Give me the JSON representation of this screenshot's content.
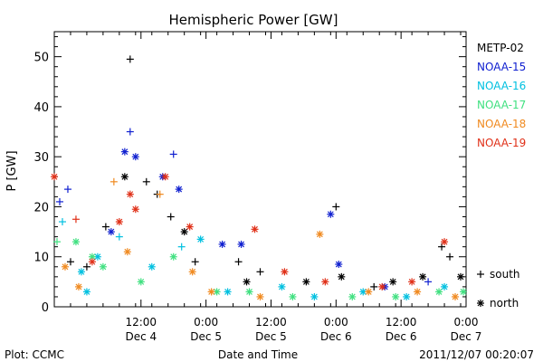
{
  "chart_data": {
    "type": "scatter",
    "title": "Hemispheric Power [GW]",
    "ylabel": "P [GW]",
    "xlabel": "Date and Time",
    "ylim": [
      0,
      55
    ],
    "yticks": [
      0,
      10,
      20,
      30,
      40,
      50
    ],
    "xlim": [
      "2011-12-03 20:00",
      "2011-12-07 00:00"
    ],
    "xticks": [
      {
        "x": "2011-12-04 12:00",
        "time": "12:00",
        "date": "Dec 4"
      },
      {
        "x": "2011-12-05 00:00",
        "time": "0:00",
        "date": "Dec 5"
      },
      {
        "x": "2011-12-05 12:00",
        "time": "12:00",
        "date": "Dec 5"
      },
      {
        "x": "2011-12-06 00:00",
        "time": "0:00",
        "date": "Dec 6"
      },
      {
        "x": "2011-12-06 12:00",
        "time": "12:00",
        "date": "Dec 6"
      },
      {
        "x": "2011-12-07 00:00",
        "time": "0:00",
        "date": "Dec 7"
      }
    ],
    "marker_legend": [
      {
        "symbol": "+",
        "label": "south"
      },
      {
        "symbol": "*",
        "label": "north"
      }
    ],
    "series": [
      {
        "name": "METP-02",
        "color": "#000000",
        "points": [
          [
            "2011-12-03 23:00",
            9,
            "+"
          ],
          [
            "2011-12-04 02:00",
            8,
            "+"
          ],
          [
            "2011-12-04 05:30",
            16,
            "+"
          ],
          [
            "2011-12-04 09:00",
            26,
            "*"
          ],
          [
            "2011-12-04 10:00",
            49.5,
            "+"
          ],
          [
            "2011-12-04 13:00",
            25,
            "+"
          ],
          [
            "2011-12-04 15:00",
            22.5,
            "+"
          ],
          [
            "2011-12-04 17:30",
            18,
            "+"
          ],
          [
            "2011-12-04 20:00",
            15,
            "*"
          ],
          [
            "2011-12-04 22:00",
            9,
            "+"
          ],
          [
            "2011-12-05 06:00",
            9,
            "+"
          ],
          [
            "2011-12-05 07:30",
            5,
            "*"
          ],
          [
            "2011-12-05 10:00",
            7,
            "+"
          ],
          [
            "2011-12-05 18:30",
            5,
            "*"
          ],
          [
            "2011-12-06 00:00",
            20,
            "+"
          ],
          [
            "2011-12-06 01:00",
            6,
            "*"
          ],
          [
            "2011-12-06 07:00",
            4,
            "+"
          ],
          [
            "2011-12-06 10:30",
            5,
            "*"
          ],
          [
            "2011-12-06 16:00",
            6,
            "*"
          ],
          [
            "2011-12-06 19:30",
            12,
            "+"
          ],
          [
            "2011-12-06 21:00",
            10,
            "+"
          ],
          [
            "2011-12-06 23:00",
            6,
            "*"
          ]
        ]
      },
      {
        "name": "NOAA-15",
        "color": "#1020d0",
        "points": [
          [
            "2011-12-03 21:00",
            21,
            "+"
          ],
          [
            "2011-12-03 22:30",
            23.5,
            "+"
          ],
          [
            "2011-12-04 06:30",
            15,
            "*"
          ],
          [
            "2011-12-04 09:00",
            31,
            "*"
          ],
          [
            "2011-12-04 10:00",
            35,
            "+"
          ],
          [
            "2011-12-04 11:00",
            30,
            "*"
          ],
          [
            "2011-12-04 16:00",
            26,
            "*"
          ],
          [
            "2011-12-04 18:00",
            30.5,
            "+"
          ],
          [
            "2011-12-04 19:00",
            23.5,
            "*"
          ],
          [
            "2011-12-05 03:00",
            12.5,
            "*"
          ],
          [
            "2011-12-05 06:30",
            12.5,
            "*"
          ],
          [
            "2011-12-05 23:00",
            18.5,
            "*"
          ],
          [
            "2011-12-06 00:30",
            8.5,
            "*"
          ],
          [
            "2011-12-06 09:00",
            4,
            "*"
          ],
          [
            "2011-12-06 17:00",
            5,
            "+"
          ]
        ]
      },
      {
        "name": "NOAA-16",
        "color": "#00c0e0",
        "points": [
          [
            "2011-12-03 21:30",
            17,
            "+"
          ],
          [
            "2011-12-04 01:00",
            7,
            "*"
          ],
          [
            "2011-12-04 02:00",
            3,
            "*"
          ],
          [
            "2011-12-04 04:00",
            10,
            "*"
          ],
          [
            "2011-12-04 08:00",
            14,
            "+"
          ],
          [
            "2011-12-04 14:00",
            8,
            "*"
          ],
          [
            "2011-12-04 19:30",
            12,
            "+"
          ],
          [
            "2011-12-04 23:00",
            13.5,
            "*"
          ],
          [
            "2011-12-05 04:00",
            3,
            "*"
          ],
          [
            "2011-12-05 14:00",
            4,
            "*"
          ],
          [
            "2011-12-05 20:00",
            2,
            "*"
          ],
          [
            "2011-12-06 05:00",
            3,
            "*"
          ],
          [
            "2011-12-06 13:00",
            2,
            "*"
          ],
          [
            "2011-12-06 20:00",
            4,
            "*"
          ]
        ]
      },
      {
        "name": "NOAA-17",
        "color": "#40e080",
        "points": [
          [
            "2011-12-03 20:30",
            13,
            "+"
          ],
          [
            "2011-12-04 00:00",
            13,
            "*"
          ],
          [
            "2011-12-04 03:00",
            10,
            "*"
          ],
          [
            "2011-12-04 05:00",
            8,
            "*"
          ],
          [
            "2011-12-04 12:00",
            5,
            "*"
          ],
          [
            "2011-12-04 18:00",
            10,
            "*"
          ],
          [
            "2011-12-05 02:00",
            3,
            "*"
          ],
          [
            "2011-12-05 08:00",
            3,
            "*"
          ],
          [
            "2011-12-05 16:00",
            2,
            "*"
          ],
          [
            "2011-12-06 03:00",
            2,
            "*"
          ],
          [
            "2011-12-06 11:00",
            2,
            "*"
          ],
          [
            "2011-12-06 19:00",
            3,
            "*"
          ],
          [
            "2011-12-06 23:30",
            3,
            "*"
          ]
        ]
      },
      {
        "name": "NOAA-18",
        "color": "#f08a20",
        "points": [
          [
            "2011-12-03 22:00",
            8,
            "*"
          ],
          [
            "2011-12-04 00:30",
            4,
            "*"
          ],
          [
            "2011-12-04 07:00",
            25,
            "+"
          ],
          [
            "2011-12-04 09:30",
            11,
            "*"
          ],
          [
            "2011-12-04 15:30",
            22.5,
            "+"
          ],
          [
            "2011-12-04 21:30",
            7,
            "*"
          ],
          [
            "2011-12-05 01:00",
            3,
            "*"
          ],
          [
            "2011-12-05 10:00",
            2,
            "*"
          ],
          [
            "2011-12-05 21:00",
            14.5,
            "*"
          ],
          [
            "2011-12-06 06:00",
            3,
            "*"
          ],
          [
            "2011-12-06 15:00",
            3,
            "*"
          ],
          [
            "2011-12-06 22:00",
            2,
            "*"
          ]
        ]
      },
      {
        "name": "NOAA-19",
        "color": "#e03018",
        "points": [
          [
            "2011-12-03 20:00",
            26,
            "*"
          ],
          [
            "2011-12-04 00:00",
            17.5,
            "+"
          ],
          [
            "2011-12-04 03:00",
            9,
            "*"
          ],
          [
            "2011-12-04 08:00",
            17,
            "*"
          ],
          [
            "2011-12-04 10:00",
            22.5,
            "*"
          ],
          [
            "2011-12-04 11:00",
            19.5,
            "*"
          ],
          [
            "2011-12-04 16:30",
            26,
            "*"
          ],
          [
            "2011-12-04 21:00",
            16,
            "*"
          ],
          [
            "2011-12-05 09:00",
            15.5,
            "*"
          ],
          [
            "2011-12-05 14:30",
            7,
            "*"
          ],
          [
            "2011-12-05 22:00",
            5,
            "*"
          ],
          [
            "2011-12-06 08:30",
            4,
            "*"
          ],
          [
            "2011-12-06 14:00",
            5,
            "*"
          ],
          [
            "2011-12-06 20:00",
            13,
            "*"
          ]
        ]
      }
    ]
  },
  "footer": {
    "plot_credit": "Plot: CCMC",
    "timestamp": "2011/12/07 00:20:07"
  }
}
